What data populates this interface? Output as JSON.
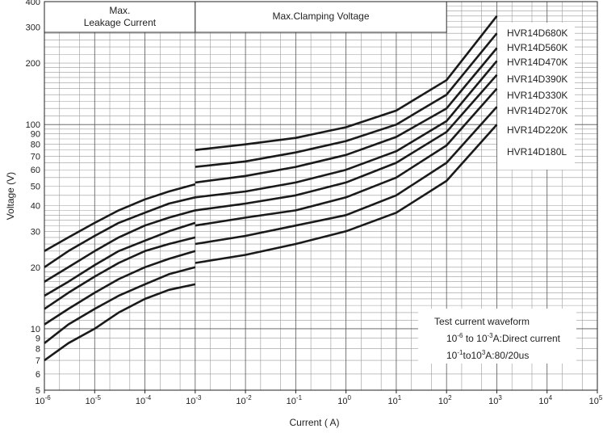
{
  "chart_data": {
    "type": "line",
    "xlabel": "Current ( A)",
    "ylabel": "Voltage (V)",
    "x_scale": "log",
    "y_scale": "log",
    "xlim": [
      1e-06,
      100000.0
    ],
    "ylim": [
      5,
      400
    ],
    "x_ticks": [
      {
        "value": 1e-06,
        "base": "10",
        "exp": "-6"
      },
      {
        "value": 1e-05,
        "base": "10",
        "exp": "-5"
      },
      {
        "value": 0.0001,
        "base": "10",
        "exp": "-4"
      },
      {
        "value": 0.001,
        "base": "10",
        "exp": "-3"
      },
      {
        "value": 0.01,
        "base": "10",
        "exp": "-2"
      },
      {
        "value": 0.1,
        "base": "10",
        "exp": "-1"
      },
      {
        "value": 1,
        "base": "10",
        "exp": "0"
      },
      {
        "value": 10,
        "base": "10",
        "exp": "1"
      },
      {
        "value": 100,
        "base": "10",
        "exp": "2"
      },
      {
        "value": 1000,
        "base": "10",
        "exp": "3"
      },
      {
        "value": 10000,
        "base": "10",
        "exp": "4"
      },
      {
        "value": 100000,
        "base": "10",
        "exp": "5"
      }
    ],
    "y_ticks": [
      {
        "value": 5,
        "label": "5"
      },
      {
        "value": 6,
        "label": "6"
      },
      {
        "value": 7,
        "label": "7"
      },
      {
        "value": 8,
        "label": "8"
      },
      {
        "value": 9,
        "label": "9"
      },
      {
        "value": 10,
        "label": "10"
      },
      {
        "value": 20,
        "label": "20"
      },
      {
        "value": 30,
        "label": "30"
      },
      {
        "value": 40,
        "label": "40"
      },
      {
        "value": 50,
        "label": "50"
      },
      {
        "value": 60,
        "label": "60"
      },
      {
        "value": 70,
        "label": "70"
      },
      {
        "value": 80,
        "label": "80"
      },
      {
        "value": 90,
        "label": "90"
      },
      {
        "value": 100,
        "label": "100"
      },
      {
        "value": 200,
        "label": "200"
      },
      {
        "value": 300,
        "label": "300"
      },
      {
        "value": 400,
        "label": "400"
      }
    ],
    "regions": {
      "leakage": [
        "Max.",
        "Leakage Current"
      ],
      "clamping": "Max.Clamping Voltage"
    },
    "annotation": {
      "title": "Test current waveform",
      "line1": {
        "a": "10",
        "ae": "-6",
        "mid": " to 10",
        "be": "-3",
        "rest": "A:Direct current"
      },
      "line2": {
        "a": "10",
        "ae": "-1",
        "mid": "to10",
        "be": "3",
        "rest": "A:80/20us"
      }
    },
    "grid": true,
    "series": [
      {
        "name": "HVR14D680K",
        "leakage": [
          [
            1e-06,
            24
          ],
          [
            3e-06,
            28
          ],
          [
            1e-05,
            33
          ],
          [
            3e-05,
            38
          ],
          [
            0.0001,
            43
          ],
          [
            0.0003,
            47
          ],
          [
            0.001,
            51
          ]
        ],
        "clamping": [
          [
            0.001,
            75
          ],
          [
            0.01,
            80
          ],
          [
            0.1,
            86
          ],
          [
            1,
            97
          ],
          [
            10,
            117
          ],
          [
            100,
            165
          ],
          [
            1000,
            340
          ]
        ]
      },
      {
        "name": "HVR14D560K",
        "leakage": [
          [
            1e-06,
            20
          ],
          [
            3e-06,
            24
          ],
          [
            1e-05,
            28.5
          ],
          [
            3e-05,
            33
          ],
          [
            0.0001,
            37
          ],
          [
            0.0003,
            41
          ],
          [
            0.001,
            44
          ]
        ],
        "clamping": [
          [
            0.001,
            62
          ],
          [
            0.01,
            66
          ],
          [
            0.1,
            73
          ],
          [
            1,
            83
          ],
          [
            10,
            100
          ],
          [
            100,
            140
          ],
          [
            1000,
            280
          ]
        ]
      },
      {
        "name": "HVR14D470K",
        "leakage": [
          [
            1e-06,
            17
          ],
          [
            3e-06,
            20
          ],
          [
            1e-05,
            24
          ],
          [
            3e-05,
            28
          ],
          [
            0.0001,
            32
          ],
          [
            0.0003,
            35
          ],
          [
            0.001,
            38
          ]
        ],
        "clamping": [
          [
            0.001,
            52
          ],
          [
            0.01,
            56
          ],
          [
            0.1,
            62
          ],
          [
            1,
            71
          ],
          [
            10,
            87
          ],
          [
            100,
            120
          ],
          [
            1000,
            237
          ]
        ]
      },
      {
        "name": "HVR14D390K",
        "leakage": [
          [
            1e-06,
            14.5
          ],
          [
            3e-06,
            17
          ],
          [
            1e-05,
            20.5
          ],
          [
            3e-05,
            24
          ],
          [
            0.0001,
            27
          ],
          [
            0.0003,
            30
          ],
          [
            0.001,
            33
          ]
        ],
        "clamping": [
          [
            0.001,
            44
          ],
          [
            0.01,
            47
          ],
          [
            0.1,
            52
          ],
          [
            1,
            60
          ],
          [
            10,
            74
          ],
          [
            100,
            104
          ],
          [
            1000,
            205
          ]
        ]
      },
      {
        "name": "HVR14D330K",
        "leakage": [
          [
            1e-06,
            12.5
          ],
          [
            3e-06,
            15
          ],
          [
            1e-05,
            18
          ],
          [
            3e-05,
            21
          ],
          [
            0.0001,
            24
          ],
          [
            0.0003,
            26
          ],
          [
            0.001,
            28
          ]
        ],
        "clamping": [
          [
            0.001,
            38
          ],
          [
            0.01,
            41
          ],
          [
            0.1,
            45
          ],
          [
            1,
            52
          ],
          [
            10,
            65
          ],
          [
            100,
            92
          ],
          [
            1000,
            175
          ]
        ]
      },
      {
        "name": "HVR14D270K",
        "leakage": [
          [
            1e-06,
            10.5
          ],
          [
            3e-06,
            12.5
          ],
          [
            1e-05,
            15
          ],
          [
            3e-05,
            17.5
          ],
          [
            0.0001,
            20
          ],
          [
            0.0003,
            22
          ],
          [
            0.001,
            24
          ]
        ],
        "clamping": [
          [
            0.001,
            32
          ],
          [
            0.01,
            35
          ],
          [
            0.1,
            38
          ],
          [
            1,
            44
          ],
          [
            10,
            55
          ],
          [
            100,
            79
          ],
          [
            1000,
            150
          ]
        ]
      },
      {
        "name": "HVR14D220K",
        "leakage": [
          [
            1e-06,
            8.5
          ],
          [
            3e-06,
            10.5
          ],
          [
            1e-05,
            12.5
          ],
          [
            3e-05,
            14.5
          ],
          [
            0.0001,
            16.5
          ],
          [
            0.0003,
            18.5
          ],
          [
            0.001,
            20
          ]
        ],
        "clamping": [
          [
            0.001,
            26
          ],
          [
            0.01,
            28.5
          ],
          [
            0.1,
            32
          ],
          [
            1,
            36
          ],
          [
            10,
            45
          ],
          [
            100,
            65
          ],
          [
            1000,
            122
          ]
        ]
      },
      {
        "name": "HVR14D180L",
        "leakage": [
          [
            1e-06,
            7
          ],
          [
            3e-06,
            8.5
          ],
          [
            1e-05,
            10
          ],
          [
            3e-05,
            12
          ],
          [
            0.0001,
            14
          ],
          [
            0.0003,
            15.5
          ],
          [
            0.001,
            16.5
          ]
        ],
        "clamping": [
          [
            0.001,
            21
          ],
          [
            0.01,
            23
          ],
          [
            0.1,
            26
          ],
          [
            1,
            30
          ],
          [
            10,
            37
          ],
          [
            100,
            53
          ],
          [
            1000,
            100
          ]
        ]
      }
    ]
  }
}
